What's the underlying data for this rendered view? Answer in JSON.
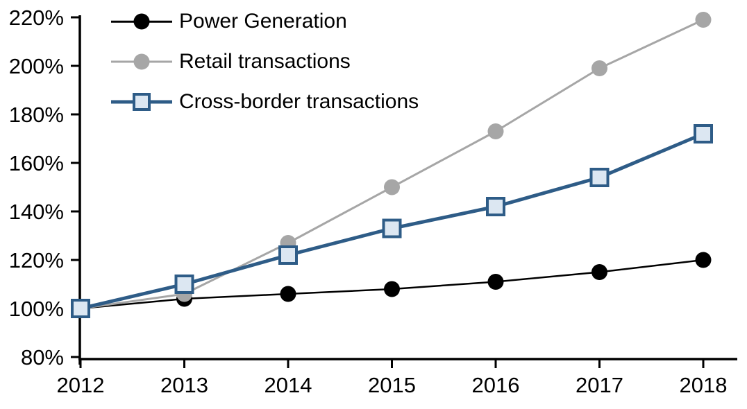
{
  "chart_data": {
    "type": "line",
    "title": "",
    "xlabel": "",
    "ylabel": "",
    "categories": [
      "2012",
      "2013",
      "2014",
      "2015",
      "2016",
      "2017",
      "2018"
    ],
    "series": [
      {
        "name": "Power Generation",
        "color": "#000000",
        "marker": "circle",
        "marker_fill": "#000000",
        "line_width": 2.5,
        "values": [
          100,
          104,
          106,
          108,
          111,
          115,
          120
        ]
      },
      {
        "name": "Retail transactions",
        "color": "#a6a6a6",
        "marker": "circle",
        "marker_fill": "#a6a6a6",
        "line_width": 3,
        "values": [
          100,
          106,
          127,
          150,
          173,
          199,
          219
        ]
      },
      {
        "name": "Cross-border transactions",
        "color": "#2e5c87",
        "marker": "square",
        "marker_fill": "#dce7f2",
        "line_width": 5,
        "values": [
          100,
          110,
          122,
          133,
          142,
          154,
          172
        ]
      }
    ],
    "y_ticks": [
      {
        "value": 80,
        "label": "80%"
      },
      {
        "value": 100,
        "label": "100%"
      },
      {
        "value": 120,
        "label": "120%"
      },
      {
        "value": 140,
        "label": "140%"
      },
      {
        "value": 160,
        "label": "160%"
      },
      {
        "value": 180,
        "label": "180%"
      },
      {
        "value": 200,
        "label": "200%"
      },
      {
        "value": 220,
        "label": "220%"
      }
    ],
    "ylim": [
      80,
      220
    ],
    "unit": "percent (indexed, 2012 = 100%)",
    "grid": false,
    "legend_position": "top-left-inside"
  }
}
